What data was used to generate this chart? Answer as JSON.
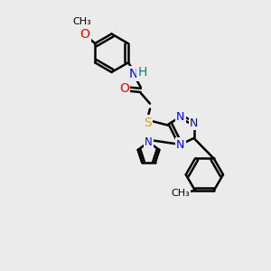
{
  "bg_color": "#ebebeb",
  "line_color": "#000000",
  "bond_width": 1.8,
  "atom_colors": {
    "N": "#0000ff",
    "O": "#ff0000",
    "S": "#ccaa00",
    "H": "#008080",
    "C": "#000000"
  },
  "font_size": 9,
  "figsize": [
    3.0,
    3.0
  ],
  "dpi": 100
}
